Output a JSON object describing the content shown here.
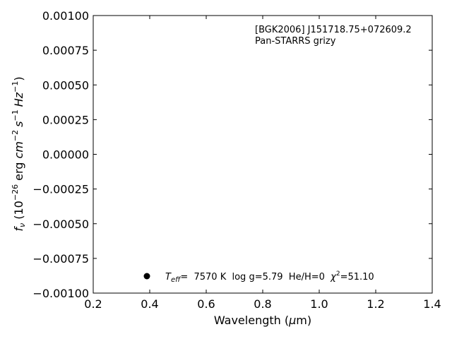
{
  "chart_data": {
    "type": "scatter",
    "annotation_lines": [
      "[BGK2006] J151718.75+072609.2",
      "Pan-STARRS grizy"
    ],
    "xlabel": {
      "prefix": "Wavelength (",
      "mu": "μ",
      "suffix": "m)"
    },
    "ylabel": {
      "f": "f",
      "nu": "ν",
      "open": " (10",
      "e1": "−26",
      "erg": " erg ",
      "cm": "cm",
      "e2": "−2",
      "s": "s",
      "e3": "−1",
      "hz": "Hz",
      "e4": "−1",
      "close": ")"
    },
    "xlim": [
      0.2,
      1.4
    ],
    "ylim": [
      -0.001,
      0.001
    ],
    "xticks": [
      0.2,
      0.4,
      0.6,
      0.8,
      1.0,
      1.2,
      1.4
    ],
    "yticks": [
      -0.001,
      -0.00075,
      -0.0005,
      -0.00025,
      0,
      0.00025,
      0.0005,
      0.00075,
      0.001
    ],
    "xtick_labels": [
      "0.2",
      "0.4",
      "0.6",
      "0.8",
      "1.0",
      "1.2",
      "1.4"
    ],
    "ytick_labels": [
      "−0.00100",
      "−0.00075",
      "−0.00050",
      "−0.00025",
      "0.00000",
      "0.00025",
      "0.00050",
      "0.00075",
      "0.00100"
    ],
    "legend": {
      "marker_color": "#000000",
      "t_label": "T",
      "t_sub": "eff",
      "t_val": "=  7570 K  log g=5.79  He/H=0  ",
      "chi": "χ",
      "chi_sup": "2",
      "chi_val": "=51.10"
    },
    "series": [
      {
        "points": []
      }
    ],
    "grid": false,
    "legend_placement": "lower-left"
  }
}
